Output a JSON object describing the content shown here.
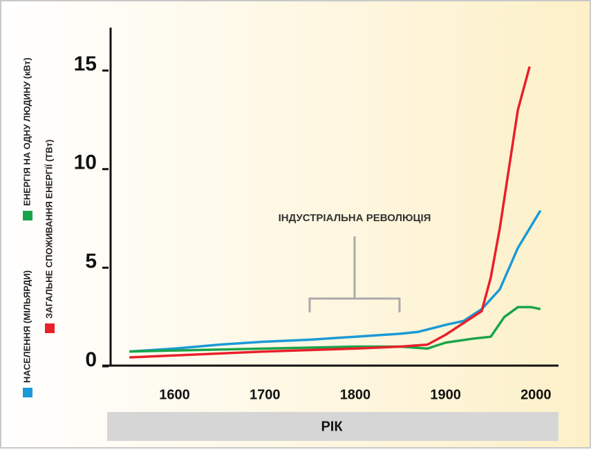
{
  "chart_data": {
    "type": "line",
    "x_label": "РІК",
    "annotation": "ІНДУСТРІАЛЬНА РЕВОЛЮЦІЯ",
    "xlim": [
      1520,
      2025
    ],
    "xticks": [
      1600,
      1700,
      1800,
      1900,
      2000
    ],
    "ylim": [
      0,
      17
    ],
    "yticks": [
      0,
      5,
      10,
      15
    ],
    "grid": false,
    "series": [
      {
        "name": "НАСЕЛЕННЯ (МІЛЬЯРДИ)",
        "color": "#1a9ad6",
        "x": [
          1550,
          1600,
          1650,
          1700,
          1750,
          1800,
          1850,
          1870,
          1900,
          1920,
          1940,
          1960,
          1980,
          2005
        ],
        "values": [
          0.75,
          0.9,
          1.1,
          1.25,
          1.35,
          1.5,
          1.65,
          1.75,
          2.1,
          2.3,
          2.9,
          3.9,
          6.0,
          7.9
        ]
      },
      {
        "name": "ЗАГАЛЬНЕ СПОЖИВАННЯ ЕНЕРГІЇ (ТВт)",
        "color": "#e8202a",
        "x": [
          1550,
          1600,
          1700,
          1800,
          1850,
          1880,
          1900,
          1920,
          1940,
          1950,
          1960,
          1970,
          1980,
          1993
        ],
        "values": [
          0.45,
          0.55,
          0.75,
          0.9,
          1.0,
          1.1,
          1.6,
          2.2,
          2.8,
          4.5,
          7.0,
          10.0,
          13.0,
          15.2
        ]
      },
      {
        "name": "ЕНЕРГІЯ НА ОДНУ ЛЮДИНУ (кВт)",
        "color": "#1aa44a",
        "x": [
          1550,
          1600,
          1700,
          1800,
          1850,
          1880,
          1900,
          1930,
          1950,
          1965,
          1980,
          1995,
          2005
        ],
        "values": [
          0.75,
          0.8,
          0.9,
          1.0,
          1.0,
          0.9,
          1.2,
          1.4,
          1.5,
          2.5,
          3.0,
          3.0,
          2.9
        ]
      }
    ]
  }
}
